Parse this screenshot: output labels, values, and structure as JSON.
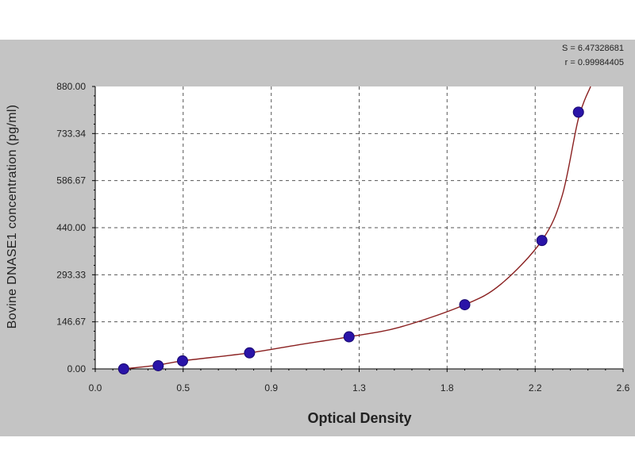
{
  "chart_data": {
    "type": "scatter",
    "title": "",
    "xlabel": "Optical Density",
    "ylabel": "Bovine DNASE1  concentration (pg/ml)",
    "xlim": [
      0.0,
      2.6
    ],
    "ylim": [
      0,
      880
    ],
    "x_ticks": [
      "0.0",
      "0.5",
      "0.9",
      "1.3",
      "1.8",
      "2.2",
      "2.6"
    ],
    "x_tick_values": [
      0.0,
      0.433,
      0.867,
      1.3,
      1.733,
      2.167,
      2.6
    ],
    "y_ticks": [
      "0.00",
      "146.67",
      "293.33",
      "440.00",
      "586.67",
      "733.34",
      "880.00"
    ],
    "y_tick_values": [
      0,
      146.67,
      293.33,
      440,
      586.67,
      733.34,
      880
    ],
    "grid": true,
    "stats": [
      "S = 6.47328681",
      "r = 0.99984405"
    ],
    "series": [
      {
        "color": "#2a14a8",
        "x": [
          0.14,
          0.31,
          0.43,
          0.76,
          1.25,
          1.82,
          2.2,
          2.38
        ],
        "y": [
          0,
          10,
          25,
          50,
          100,
          200,
          400,
          800
        ]
      }
    ],
    "fit_curve": {
      "color": "#8a2020",
      "x": [
        0.14,
        0.31,
        0.43,
        0.76,
        1.0,
        1.25,
        1.5,
        1.82,
        2.0,
        2.2,
        2.3,
        2.38,
        2.44
      ],
      "y": [
        0,
        12,
        25,
        50,
        75,
        100,
        130,
        200,
        265,
        400,
        540,
        780,
        880
      ]
    }
  }
}
